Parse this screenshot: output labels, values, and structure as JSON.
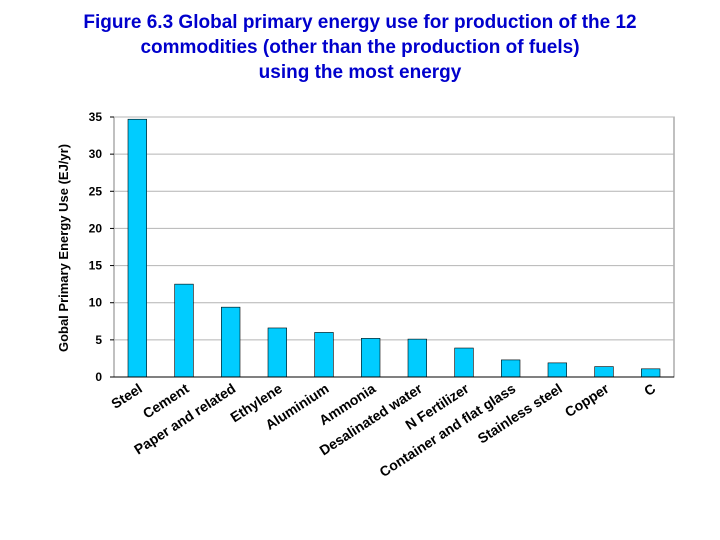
{
  "chart_data": {
    "type": "bar",
    "title_lines": [
      "Figure 6.3 Global primary energy use for production of the 12",
      "commodities (other than the production of fuels)",
      "using the most energy"
    ],
    "ylabel": "Gobal Primary Energy Use (EJ/yr)",
    "xlabel": "",
    "ylim": [
      0,
      35
    ],
    "yticks": [
      0,
      5,
      10,
      15,
      20,
      25,
      30,
      35
    ],
    "grid": true,
    "categories": [
      "Steel",
      "Cement",
      "Paper and related",
      "Ethylene",
      "Aluminium",
      "Ammonia",
      "Desalinated water",
      "N Fertilizer",
      "Container and flat glass",
      "Stainless steel",
      "Copper",
      "C"
    ],
    "values": [
      34.7,
      12.5,
      9.4,
      6.6,
      6.0,
      5.2,
      5.1,
      3.9,
      2.3,
      1.9,
      1.4,
      1.1
    ],
    "colors": {
      "bar": "#00ccff",
      "bar_stroke": "#000000",
      "title": "#0000cc",
      "grid": "#b4b4b4"
    }
  }
}
